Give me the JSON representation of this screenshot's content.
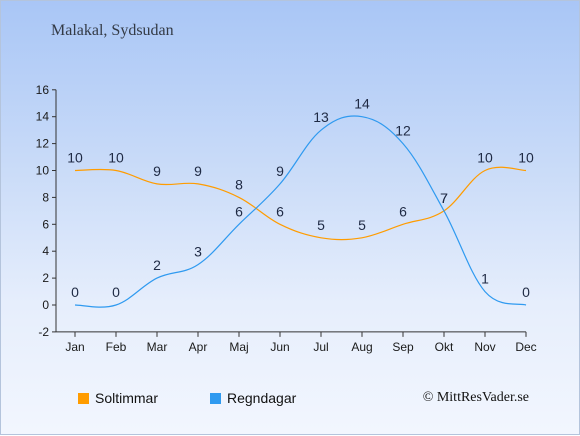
{
  "title": "Malakal, Sydsudan",
  "credit": "© MittResVader.se",
  "colors": {
    "sun": "#ff9c00",
    "rain": "#2f9af0",
    "axis": "#333333"
  },
  "chart_data": {
    "type": "line",
    "categories": [
      "Jan",
      "Feb",
      "Mar",
      "Apr",
      "Maj",
      "Jun",
      "Jul",
      "Aug",
      "Sep",
      "Okt",
      "Nov",
      "Dec"
    ],
    "ylim": [
      -2,
      16
    ],
    "yticks": [
      -2,
      0,
      2,
      4,
      6,
      8,
      10,
      12,
      14,
      16
    ],
    "grid": false,
    "legend_position": "bottom",
    "series": [
      {
        "name": "Soltimmar",
        "color": "#ff9c00",
        "values": [
          10,
          10,
          9,
          9,
          8,
          6,
          5,
          5,
          6,
          7,
          10,
          10
        ]
      },
      {
        "name": "Regndagar",
        "color": "#2f9af0",
        "values": [
          0,
          0,
          2,
          3,
          6,
          9,
          13,
          14,
          12,
          7,
          1,
          0
        ]
      }
    ]
  }
}
